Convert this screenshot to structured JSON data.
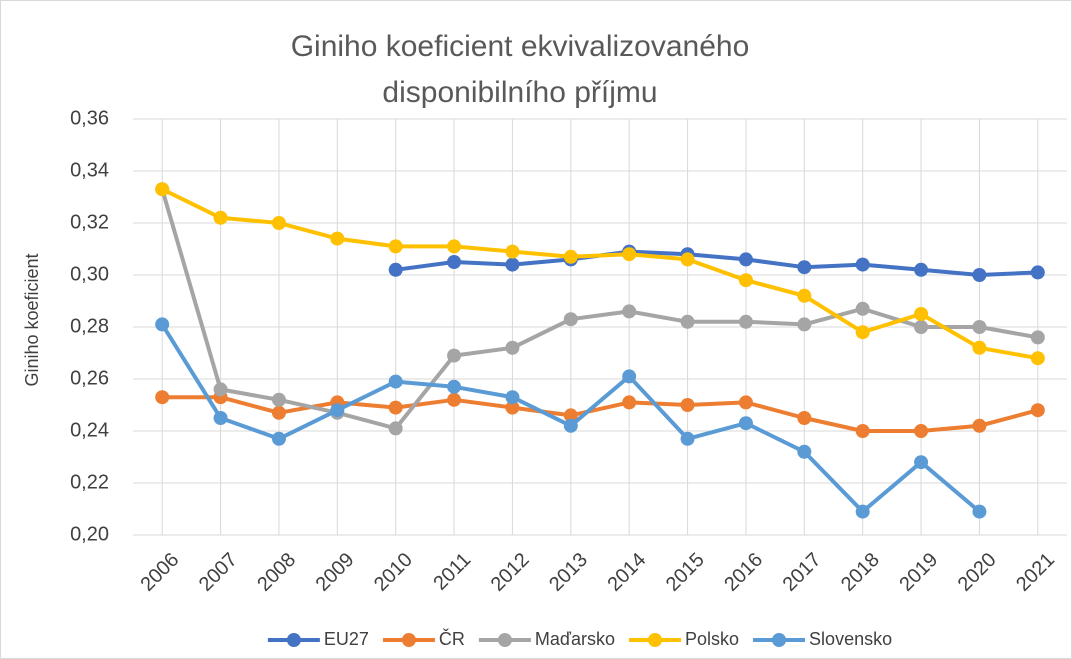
{
  "chart_data": {
    "type": "line",
    "title": "Giniho koeficient ekvivalizovaného disponibilního příjmu",
    "y_label": "Giniho koeficient",
    "categories": [
      "2006",
      "2007",
      "2008",
      "2009",
      "2010",
      "2011",
      "2012",
      "2013",
      "2014",
      "2015",
      "2016",
      "2017",
      "2018",
      "2019",
      "2020",
      "2021"
    ],
    "series": [
      {
        "name": "EU27",
        "color": "#4472c4",
        "values": [
          null,
          null,
          null,
          null,
          0.302,
          0.305,
          0.304,
          0.306,
          0.309,
          0.308,
          0.306,
          0.303,
          0.304,
          0.302,
          0.3,
          0.301
        ]
      },
      {
        "name": "ČR",
        "color": "#ed7d31",
        "values": [
          0.253,
          0.253,
          0.247,
          0.251,
          0.249,
          0.252,
          0.249,
          0.246,
          0.251,
          0.25,
          0.251,
          0.245,
          0.24,
          0.24,
          0.242,
          0.248
        ]
      },
      {
        "name": "Maďarsko",
        "color": "#a5a5a5",
        "values": [
          0.333,
          0.256,
          0.252,
          0.247,
          0.241,
          0.269,
          0.272,
          0.283,
          0.286,
          0.282,
          0.282,
          0.281,
          0.287,
          0.28,
          0.28,
          0.276
        ]
      },
      {
        "name": "Polsko",
        "color": "#ffc000",
        "values": [
          0.333,
          0.322,
          0.32,
          0.314,
          0.311,
          0.311,
          0.309,
          0.307,
          0.308,
          0.306,
          0.298,
          0.292,
          0.278,
          0.285,
          0.272,
          0.268
        ]
      },
      {
        "name": "Slovensko",
        "color": "#5b9bd5",
        "values": [
          0.281,
          0.245,
          0.237,
          0.248,
          0.259,
          0.257,
          0.253,
          0.242,
          0.261,
          0.237,
          0.243,
          0.232,
          0.209,
          0.228,
          0.209,
          null
        ]
      }
    ],
    "ylim": [
      0.2,
      0.36
    ],
    "yticks": [
      {
        "value": 0.2,
        "label": "0,20"
      },
      {
        "value": 0.22,
        "label": "0,22"
      },
      {
        "value": 0.24,
        "label": "0,24"
      },
      {
        "value": 0.26,
        "label": "0,26"
      },
      {
        "value": 0.28,
        "label": "0,28"
      },
      {
        "value": 0.3,
        "label": "0,30"
      },
      {
        "value": 0.32,
        "label": "0,32"
      },
      {
        "value": 0.34,
        "label": "0,34"
      },
      {
        "value": 0.36,
        "label": "0,36"
      }
    ],
    "grid": true,
    "legend": "bottom"
  }
}
